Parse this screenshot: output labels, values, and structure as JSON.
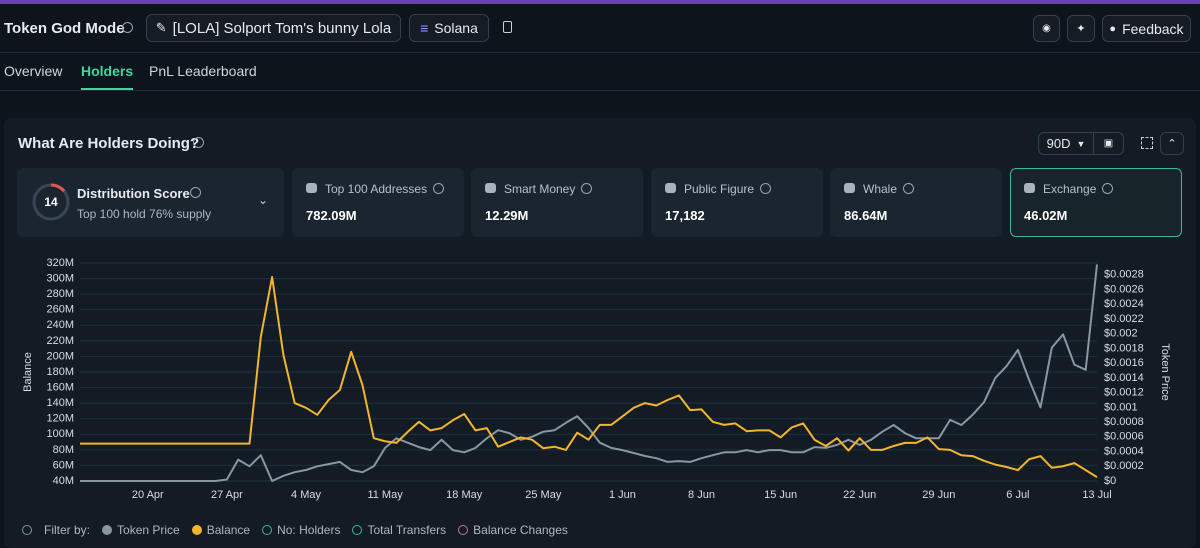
{
  "header": {
    "title": "Token God Mode",
    "token": "[LOLA] Solport Tom's bunny Lola",
    "chain": "Solana",
    "feedback": "Feedback"
  },
  "tabs": [
    "Overview",
    "Holders",
    "PnL Leaderboard"
  ],
  "active_tab": 1,
  "card": {
    "title": "What Are Holders Doing?",
    "range": "90D"
  },
  "distribution": {
    "label": "Distribution Score",
    "score": 14,
    "note": "Top 100 hold 76% supply"
  },
  "stats": [
    {
      "label": "Top 100 Addresses",
      "value": "782.09M"
    },
    {
      "label": "Smart Money",
      "value": "12.29M"
    },
    {
      "label": "Public Figure",
      "value": "17,182"
    },
    {
      "label": "Whale",
      "value": "86.64M"
    },
    {
      "label": "Exchange",
      "value": "46.02M",
      "highlight": true
    }
  ],
  "chart_data": {
    "type": "line",
    "y_label": "Balance",
    "y2_label": "Token Price",
    "grid": true,
    "categories": [
      null,
      null,
      null,
      null,
      null,
      null,
      "20 Apr",
      null,
      null,
      null,
      null,
      null,
      null,
      "27 Apr",
      null,
      null,
      null,
      null,
      null,
      null,
      "4 May",
      null,
      null,
      null,
      null,
      null,
      null,
      "11 May",
      null,
      null,
      null,
      null,
      null,
      null,
      "18 May",
      null,
      null,
      null,
      null,
      null,
      null,
      "25 May",
      null,
      null,
      null,
      null,
      null,
      null,
      "1 Jun",
      null,
      null,
      null,
      null,
      null,
      null,
      "8 Jun",
      null,
      null,
      null,
      null,
      null,
      null,
      "15 Jun",
      null,
      null,
      null,
      null,
      null,
      null,
      "22 Jun",
      null,
      null,
      null,
      null,
      null,
      null,
      "29 Jun",
      null,
      null,
      null,
      null,
      null,
      null,
      "6 Jul",
      null,
      null,
      null,
      null,
      null,
      null,
      "13 Jul"
    ],
    "ylim": [
      40,
      320
    ],
    "yticks": [
      {
        "value": 40,
        "label": "40M"
      },
      {
        "value": 60,
        "label": "60M"
      },
      {
        "value": 80,
        "label": "80M"
      },
      {
        "value": 100,
        "label": "100M"
      },
      {
        "value": 120,
        "label": "120M"
      },
      {
        "value": 140,
        "label": "140M"
      },
      {
        "value": 160,
        "label": "160M"
      },
      {
        "value": 180,
        "label": "180M"
      },
      {
        "value": 200,
        "label": "200M"
      },
      {
        "value": 220,
        "label": "220M"
      },
      {
        "value": 240,
        "label": "240M"
      },
      {
        "value": 260,
        "label": "260M"
      },
      {
        "value": 280,
        "label": "280M"
      },
      {
        "value": 300,
        "label": "300M"
      },
      {
        "value": 320,
        "label": "320M"
      }
    ],
    "y2lim": [
      0,
      0.00296
    ],
    "y2ticks": [
      {
        "value": 0,
        "label": "$0"
      },
      {
        "value": 0.0002,
        "label": "$0.0002"
      },
      {
        "value": 0.0004,
        "label": "$0.0004"
      },
      {
        "value": 0.0006,
        "label": "$0.0006"
      },
      {
        "value": 0.0008,
        "label": "$0.0008"
      },
      {
        "value": 0.001,
        "label": "$0.001"
      },
      {
        "value": 0.0012,
        "label": "$0.0012"
      },
      {
        "value": 0.0014,
        "label": "$0.0014"
      },
      {
        "value": 0.0016,
        "label": "$0.0016"
      },
      {
        "value": 0.0018,
        "label": "$0.0018"
      },
      {
        "value": 0.002,
        "label": "$0.002"
      },
      {
        "value": 0.0022,
        "label": "$0.0022"
      },
      {
        "value": 0.0024,
        "label": "$0.0024"
      },
      {
        "value": 0.0026,
        "label": "$0.0026"
      },
      {
        "value": 0.0028,
        "label": "$0.0028"
      }
    ],
    "series": [
      {
        "name": "Token Price",
        "color": "#8b96a1",
        "axis": "y2",
        "values": [
          0,
          0,
          0,
          0,
          0,
          0,
          0,
          0,
          0,
          0,
          0,
          0,
          0,
          2e-05,
          0.00029,
          0.0002,
          0.00035,
          0,
          7e-05,
          0.00012,
          0.00015,
          0.0002,
          0.00023,
          0.00026,
          0.00015,
          0.00012,
          0.0002,
          0.00045,
          0.00058,
          0.00052,
          0.00046,
          0.00042,
          0.00056,
          0.00042,
          0.00039,
          0.00045,
          0.00058,
          0.00069,
          0.00065,
          0.00056,
          0.0006,
          0.00067,
          0.00069,
          0.00079,
          0.00088,
          0.00072,
          0.00052,
          0.00045,
          0.00042,
          0.00038,
          0.00034,
          0.00031,
          0.00026,
          0.00027,
          0.00026,
          0.00031,
          0.00035,
          0.00039,
          0.00039,
          0.00042,
          0.00039,
          0.00042,
          0.00042,
          0.00039,
          0.00039,
          0.00046,
          0.00045,
          0.00049,
          0.00056,
          0.00049,
          0.00056,
          0.00067,
          0.00076,
          0.00065,
          0.00058,
          0.00058,
          0.00058,
          0.00083,
          0.00076,
          0.0009,
          0.00107,
          0.0014,
          0.00156,
          0.00178,
          0.00137,
          0.001,
          0.00181,
          0.00199,
          0.00158,
          0.00151,
          0.00294
        ]
      },
      {
        "name": "Balance",
        "color": "#f2b52c",
        "values": [
          88,
          88,
          88,
          88,
          88,
          88,
          88,
          88,
          88,
          88,
          88,
          88,
          88,
          88,
          88,
          88,
          225,
          302,
          202,
          140,
          134,
          125,
          144,
          157,
          206,
          163,
          95,
          91,
          89,
          103,
          116,
          105,
          108,
          118,
          126,
          105,
          108,
          84,
          90,
          96,
          93,
          82,
          84,
          80,
          102,
          93,
          112,
          112,
          123,
          134,
          140,
          137,
          144,
          150,
          131,
          132,
          116,
          112,
          114,
          104,
          105,
          105,
          96,
          109,
          114,
          93,
          85,
          95,
          79,
          95,
          80,
          80,
          85,
          89,
          89,
          96,
          81,
          80,
          73,
          72,
          66,
          61,
          58,
          54,
          68,
          72,
          57,
          59,
          63,
          54,
          45
        ]
      }
    ],
    "filter_label": "Filter by:",
    "filters": [
      {
        "name": "No: Holders",
        "color": "#3bb8a0"
      },
      {
        "name": "Total Transfers",
        "color": "#3bb8a0"
      },
      {
        "name": "Balance Changes",
        "color": "#d06bb3"
      }
    ]
  }
}
